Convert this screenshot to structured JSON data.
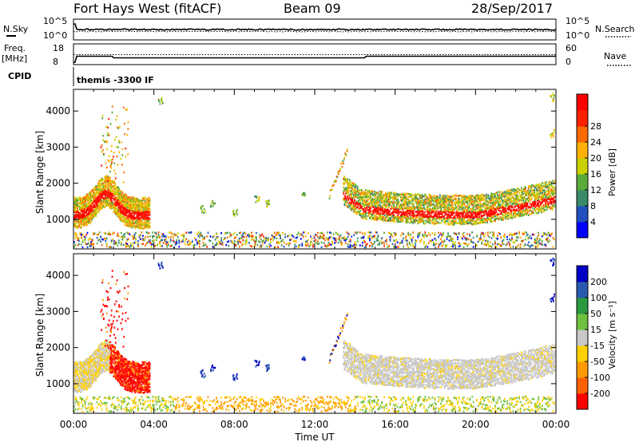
{
  "header": {
    "station": "Fort Hays West (fitACF)",
    "beam": "Beam 09",
    "date": "28/Sep/2017"
  },
  "left_labels": {
    "nsky": "N.Sky",
    "freq_line1": "Freq.",
    "freq_line2": "[MHz]",
    "cpid": "CPID"
  },
  "right_labels": {
    "nsearch": "N.Search",
    "nave": "Nave"
  },
  "cpid_text": "themis -3300 IF",
  "axes": {
    "noise_left_top": "10^5",
    "noise_left_bottom": "10^0",
    "noise_right_top": "10^5",
    "noise_right_bottom": "10^0",
    "freq_left_top": "18",
    "freq_left_bottom": "8",
    "nave_right_top": "60",
    "nave_right_bottom": "0",
    "ylabel": "Slant Range [km]",
    "xlabel": "Time UT"
  },
  "colors": {
    "power": [
      "#0000ff",
      "#2050c0",
      "#3a8a6a",
      "#5aaa3a",
      "#c8d000",
      "#ffb000",
      "#ff6a00",
      "#ff2000",
      "#ff0000"
    ],
    "velocity": [
      "#ff0000",
      "#ff6000",
      "#ff9a00",
      "#ffd000",
      "#c8c8c8",
      "#70c040",
      "#2a9a40",
      "#2a5ab0",
      "#0000c8"
    ]
  },
  "chart_data": [
    {
      "type": "heatmap",
      "name": "Power",
      "ylabel": "Slant Range [km]",
      "x_ticks": [
        "00:00",
        "04:00",
        "08:00",
        "12:00",
        "16:00",
        "20:00",
        "00:00"
      ],
      "y_ticks": [
        "1000",
        "2000",
        "3000",
        "4000"
      ],
      "colorbar_label": "Power [dB]",
      "colorbar_ticks": [
        "4",
        "8",
        "12",
        "16",
        "20",
        "24",
        "28"
      ],
      "xlim_hours": [
        0,
        24
      ],
      "ylim_km": [
        180,
        4600
      ]
    },
    {
      "type": "heatmap",
      "name": "Velocity",
      "ylabel": "Slant Range [km]",
      "xlabel": "Time UT",
      "x_ticks": [
        "00:00",
        "04:00",
        "08:00",
        "12:00",
        "16:00",
        "20:00",
        "00:00"
      ],
      "y_ticks": [
        "1000",
        "2000",
        "3000",
        "4000"
      ],
      "colorbar_label": "Velocity [m s⁻¹]",
      "colorbar_ticks": [
        "200",
        "100",
        "50",
        "15",
        "-15",
        "-50",
        "-100",
        "-200"
      ],
      "xlim_hours": [
        0,
        24
      ],
      "ylim_km": [
        180,
        4600
      ]
    }
  ]
}
